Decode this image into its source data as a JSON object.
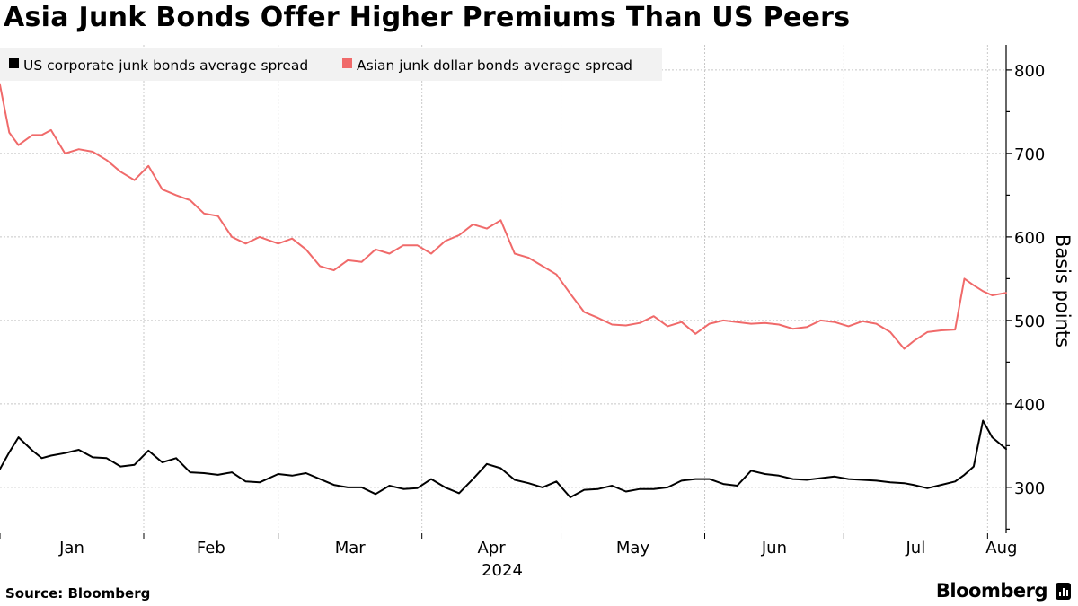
{
  "title": "Asia Junk Bonds Offer Higher Premiums Than US Peers",
  "source": "Source: Bloomberg",
  "brand": "Bloomberg",
  "brand_icon": "bloomberg-terminal-icon",
  "chart_data": {
    "type": "line",
    "title": "Asia Junk Bonds Offer Higher Premiums Than US Peers",
    "xlabel": "2024",
    "ylabel": "Basis points",
    "x_ticks": [
      "Jan",
      "Feb",
      "Mar",
      "Apr",
      "May",
      "Jun",
      "Jul",
      "Aug"
    ],
    "x_range": [
      "2024-01-01",
      "2024-08-05"
    ],
    "y_ticks": [
      300,
      400,
      500,
      600,
      700,
      800
    ],
    "ylim": [
      245,
      830
    ],
    "grid": true,
    "legend_position": "top-left",
    "series": [
      {
        "name": "US corporate junk bonds average spread",
        "color": "#000000",
        "x": [
          "2024-01-01",
          "2024-01-03",
          "2024-01-05",
          "2024-01-08",
          "2024-01-10",
          "2024-01-12",
          "2024-01-15",
          "2024-01-18",
          "2024-01-21",
          "2024-01-24",
          "2024-01-27",
          "2024-01-30",
          "2024-02-02",
          "2024-02-05",
          "2024-02-08",
          "2024-02-11",
          "2024-02-14",
          "2024-02-17",
          "2024-02-20",
          "2024-02-23",
          "2024-02-26",
          "2024-03-01",
          "2024-03-04",
          "2024-03-07",
          "2024-03-10",
          "2024-03-13",
          "2024-03-16",
          "2024-03-19",
          "2024-03-22",
          "2024-03-25",
          "2024-03-28",
          "2024-03-31",
          "2024-04-03",
          "2024-04-06",
          "2024-04-09",
          "2024-04-12",
          "2024-04-15",
          "2024-04-18",
          "2024-04-21",
          "2024-04-24",
          "2024-04-27",
          "2024-04-30",
          "2024-05-03",
          "2024-05-06",
          "2024-05-09",
          "2024-05-12",
          "2024-05-15",
          "2024-05-18",
          "2024-05-21",
          "2024-05-24",
          "2024-05-27",
          "2024-05-30",
          "2024-06-02",
          "2024-06-05",
          "2024-06-08",
          "2024-06-11",
          "2024-06-14",
          "2024-06-17",
          "2024-06-20",
          "2024-06-23",
          "2024-06-26",
          "2024-06-29",
          "2024-07-02",
          "2024-07-05",
          "2024-07-08",
          "2024-07-11",
          "2024-07-14",
          "2024-07-16",
          "2024-07-19",
          "2024-07-22",
          "2024-07-25",
          "2024-07-27",
          "2024-07-29",
          "2024-07-31",
          "2024-08-02",
          "2024-08-05"
        ],
        "values": [
          322,
          342,
          360,
          344,
          335,
          338,
          341,
          345,
          336,
          335,
          325,
          327,
          344,
          330,
          335,
          318,
          317,
          315,
          318,
          307,
          306,
          316,
          314,
          317,
          310,
          303,
          300,
          300,
          292,
          302,
          298,
          299,
          310,
          300,
          293,
          310,
          328,
          323,
          309,
          305,
          300,
          307,
          288,
          297,
          298,
          302,
          295,
          298,
          298,
          300,
          308,
          310,
          310,
          304,
          302,
          320,
          316,
          314,
          310,
          309,
          311,
          313,
          310,
          309,
          308,
          306,
          305,
          303,
          299,
          303,
          307,
          315,
          325,
          380,
          360,
          346
        ]
      },
      {
        "name": "Asian junk dollar bonds average spread",
        "color": "#f06a6a",
        "x": [
          "2024-01-01",
          "2024-01-03",
          "2024-01-05",
          "2024-01-08",
          "2024-01-10",
          "2024-01-12",
          "2024-01-15",
          "2024-01-18",
          "2024-01-21",
          "2024-01-24",
          "2024-01-27",
          "2024-01-30",
          "2024-02-02",
          "2024-02-05",
          "2024-02-08",
          "2024-02-11",
          "2024-02-14",
          "2024-02-17",
          "2024-02-20",
          "2024-02-23",
          "2024-02-26",
          "2024-03-01",
          "2024-03-04",
          "2024-03-07",
          "2024-03-10",
          "2024-03-13",
          "2024-03-16",
          "2024-03-19",
          "2024-03-22",
          "2024-03-25",
          "2024-03-28",
          "2024-03-31",
          "2024-04-03",
          "2024-04-06",
          "2024-04-09",
          "2024-04-12",
          "2024-04-15",
          "2024-04-18",
          "2024-04-21",
          "2024-04-24",
          "2024-04-27",
          "2024-04-30",
          "2024-05-03",
          "2024-05-06",
          "2024-05-09",
          "2024-05-12",
          "2024-05-15",
          "2024-05-18",
          "2024-05-21",
          "2024-05-24",
          "2024-05-27",
          "2024-05-30",
          "2024-06-02",
          "2024-06-05",
          "2024-06-08",
          "2024-06-11",
          "2024-06-14",
          "2024-06-17",
          "2024-06-20",
          "2024-06-23",
          "2024-06-26",
          "2024-06-29",
          "2024-07-02",
          "2024-07-05",
          "2024-07-08",
          "2024-07-11",
          "2024-07-14",
          "2024-07-16",
          "2024-07-19",
          "2024-07-22",
          "2024-07-25",
          "2024-07-27",
          "2024-07-29",
          "2024-07-31",
          "2024-08-02",
          "2024-08-05"
        ],
        "values": [
          782,
          725,
          710,
          722,
          722,
          728,
          700,
          705,
          702,
          692,
          678,
          668,
          685,
          657,
          650,
          644,
          628,
          625,
          600,
          592,
          600,
          592,
          598,
          585,
          565,
          560,
          572,
          570,
          585,
          580,
          590,
          590,
          580,
          595,
          602,
          615,
          610,
          620,
          580,
          575,
          565,
          555,
          532,
          510,
          503,
          495,
          494,
          497,
          505,
          493,
          498,
          484,
          496,
          500,
          498,
          496,
          497,
          495,
          490,
          492,
          500,
          498,
          493,
          499,
          496,
          486,
          466,
          475,
          486,
          488,
          489,
          550,
          542,
          535,
          530,
          533
        ]
      }
    ]
  }
}
